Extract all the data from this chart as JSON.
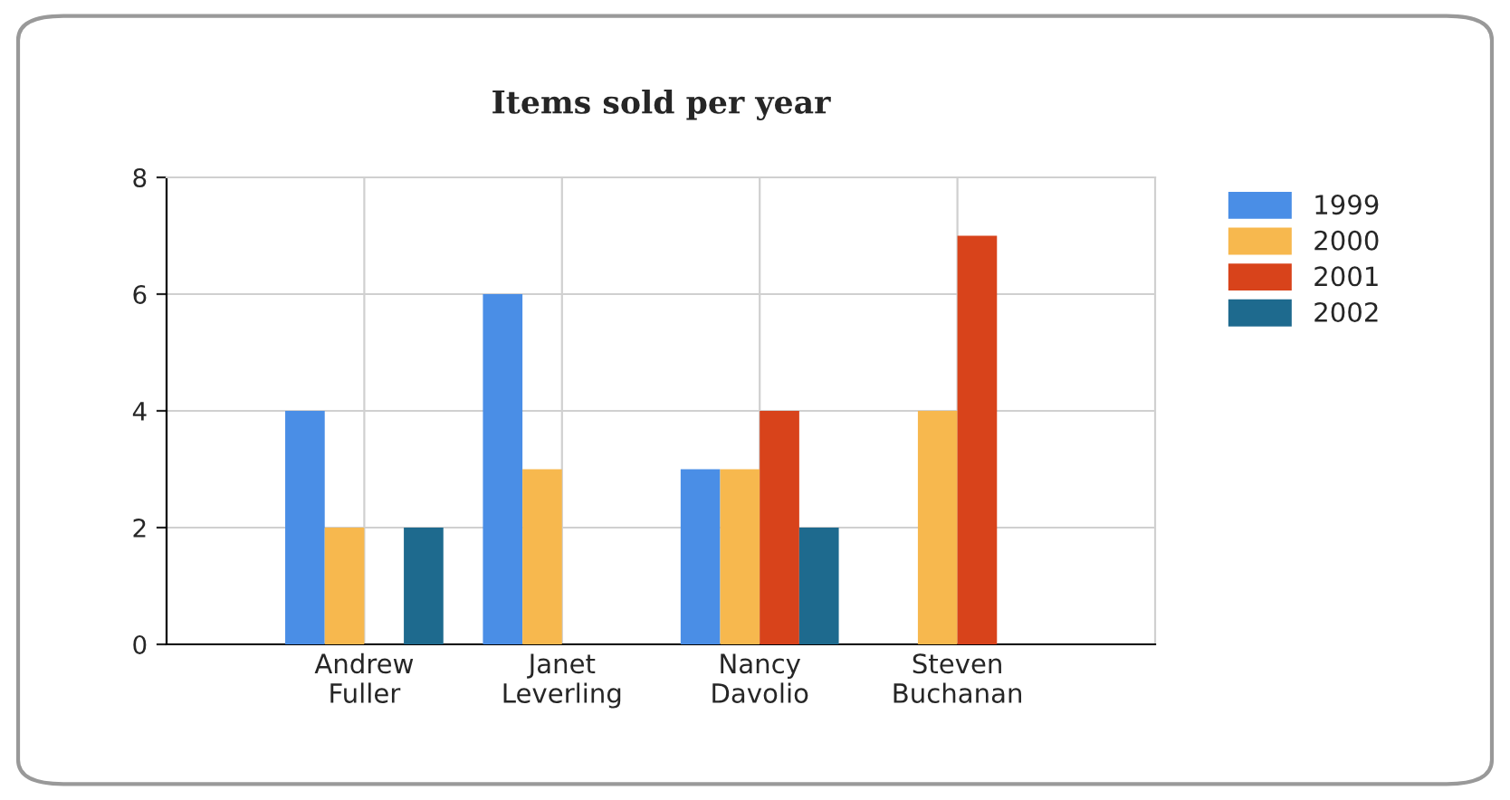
{
  "chart_data": {
    "type": "bar",
    "title": "Items sold per year",
    "categories": [
      "Andrew\nFuller",
      "Janet\nLeverling",
      "Nancy\nDavolio",
      "Steven\nBuchanan"
    ],
    "series": [
      {
        "name": "1999",
        "color": "#4a8ee6",
        "values": [
          4,
          6,
          3,
          null
        ]
      },
      {
        "name": "2000",
        "color": "#f7b84e",
        "values": [
          2,
          3,
          3,
          4
        ]
      },
      {
        "name": "2001",
        "color": "#d8431b",
        "values": [
          null,
          null,
          4,
          7
        ]
      },
      {
        "name": "2002",
        "color": "#1e6a8e",
        "values": [
          2,
          null,
          2,
          null
        ]
      }
    ],
    "ylim": [
      0,
      8
    ],
    "yticks": [
      0,
      2,
      4,
      6,
      8
    ],
    "grid": true,
    "legend": "top right"
  }
}
